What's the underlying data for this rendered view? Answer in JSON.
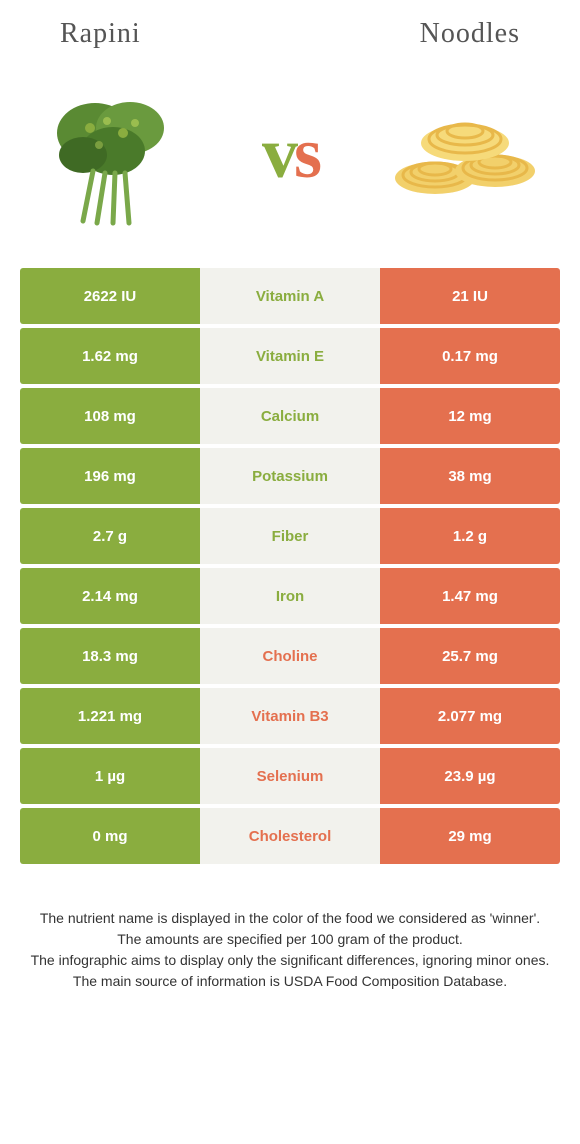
{
  "header": {
    "left": "Rapini",
    "right": "Noodles"
  },
  "vs": {
    "v": "v",
    "s": "s"
  },
  "colors": {
    "green": "#8aad3f",
    "orange": "#e4704f",
    "mid_bg": "#f2f2ed",
    "text_green": "#8aad3f",
    "text_orange": "#e4704f"
  },
  "images": {
    "left": {
      "name": "rapini",
      "color": "#4a7a2a"
    },
    "right": {
      "name": "noodles",
      "color": "#f2d06b"
    }
  },
  "rows": [
    {
      "left": "2622 IU",
      "label": "Vitamin A",
      "right": "21 IU",
      "winner": "left"
    },
    {
      "left": "1.62 mg",
      "label": "Vitamin E",
      "right": "0.17 mg",
      "winner": "left"
    },
    {
      "left": "108 mg",
      "label": "Calcium",
      "right": "12 mg",
      "winner": "left"
    },
    {
      "left": "196 mg",
      "label": "Potassium",
      "right": "38 mg",
      "winner": "left"
    },
    {
      "left": "2.7 g",
      "label": "Fiber",
      "right": "1.2 g",
      "winner": "left"
    },
    {
      "left": "2.14 mg",
      "label": "Iron",
      "right": "1.47 mg",
      "winner": "left"
    },
    {
      "left": "18.3 mg",
      "label": "Choline",
      "right": "25.7 mg",
      "winner": "right"
    },
    {
      "left": "1.221 mg",
      "label": "Vitamin B3",
      "right": "2.077 mg",
      "winner": "right"
    },
    {
      "left": "1 µg",
      "label": "Selenium",
      "right": "23.9 µg",
      "winner": "right"
    },
    {
      "left": "0 mg",
      "label": "Cholesterol",
      "right": "29 mg",
      "winner": "right"
    }
  ],
  "footer": [
    "The nutrient name is displayed in the color of the food we considered as 'winner'.",
    "The amounts are specified per 100 gram of the product.",
    "The infographic aims to display only the significant differences, ignoring minor ones.",
    "The main source of information is USDA Food Composition Database."
  ]
}
